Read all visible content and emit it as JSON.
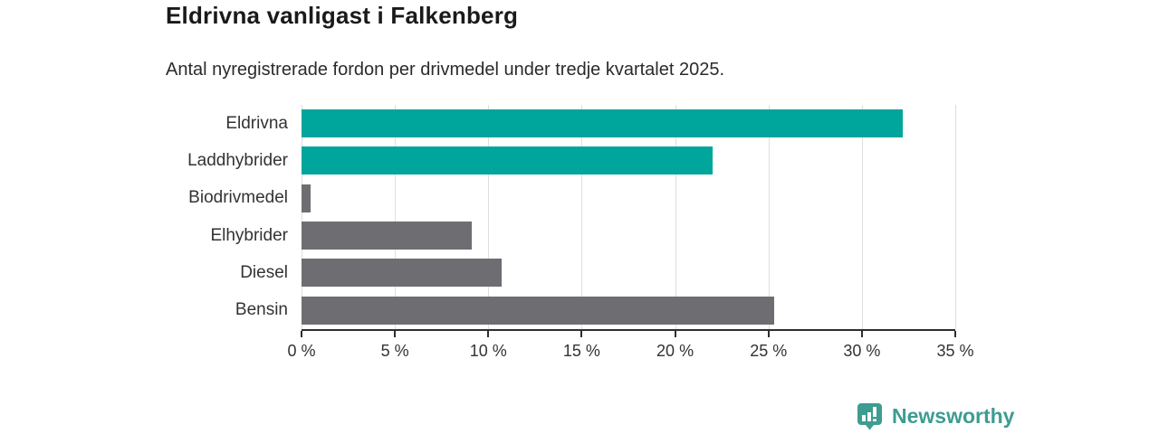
{
  "header": {
    "title": "Eldrivna vanligast i Falkenberg",
    "subtitle": "Antal nyregistrerade fordon per drivmedel under tredje kvartalet 2025."
  },
  "chart_data": {
    "type": "bar",
    "orientation": "horizontal",
    "title": "Eldrivna vanligast i Falkenberg",
    "subtitle": "Antal nyregistrerade fordon per drivmedel under tredje kvartalet 2025.",
    "categories": [
      "Eldrivna",
      "Laddhybrider",
      "Biodrivmedel",
      "Elhybrider",
      "Diesel",
      "Bensin"
    ],
    "values": [
      32.2,
      22.0,
      0.5,
      9.1,
      10.7,
      25.3
    ],
    "unit": "%",
    "xlim": [
      0,
      35
    ],
    "x_tick_step": 5,
    "x_ticks": [
      "0 %",
      "5 %",
      "10 %",
      "15 %",
      "20 %",
      "25 %",
      "30 %",
      "35 %"
    ],
    "grid": true,
    "legend_position": "none",
    "bar_colors": [
      "#00a59c",
      "#00a59c",
      "#6d6d72",
      "#6d6d72",
      "#6d6d72",
      "#6d6d72"
    ],
    "accent_color": "#00a59c",
    "neutral_color": "#6d6d72",
    "gridline_color": "#dedede",
    "axis_color": "#2e2e2e"
  },
  "footer": {
    "brand": "Newsworthy",
    "brand_color": "#3e9c91",
    "logo_icon": "newsworthy-chart-pin-icon"
  }
}
